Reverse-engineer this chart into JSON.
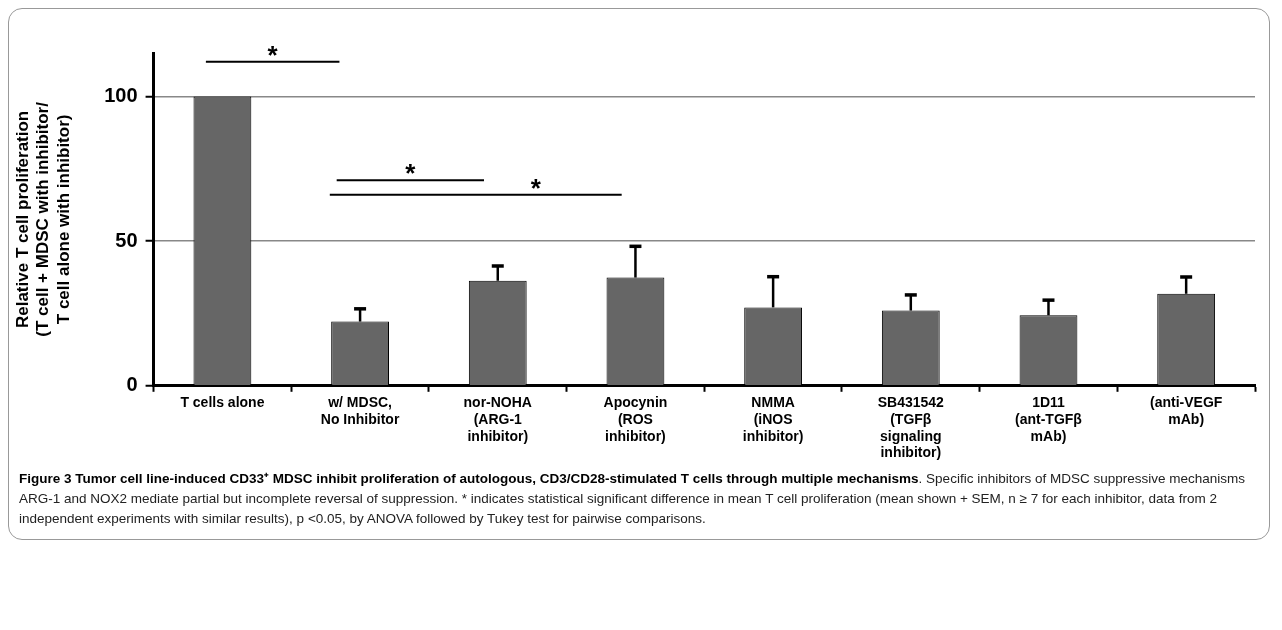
{
  "chart_data": {
    "type": "bar",
    "title": "Figure 3 Tumor cell line-induced CD33⁺ MDSC inhibit proliferation of autologous, CD3/CD28-stimulated T cells through multiple mechanisms",
    "ylabel": "Relative T cell proliferation\n(T cell + MDSC with inhibitor/\nT cell alone with inhibitor)",
    "categories": [
      "T cells alone",
      "w/ MDSC,\nNo Inhibitor",
      "nor-NOHA\n(ARG-1\ninhibitor)",
      "Apocynin\n(ROS\ninhibitor)",
      "NMMA\n(iNOS\ninhibitor)",
      "SB431542\n(TGFβ\nsignaling\ninhibitor)",
      "1D11\n(ant-TGFβ\nmAb)",
      "(anti-VEGF\nmAb)"
    ],
    "values": [
      100,
      22.2,
      36.3,
      37.4,
      27.1,
      26.0,
      24.4,
      31.8
    ],
    "errors": [
      null,
      [
        22.2,
        26.6
      ],
      [
        36.3,
        41.4
      ],
      [
        37.4,
        48.2
      ],
      [
        27.1,
        37.7
      ],
      [
        26.0,
        31.4
      ],
      [
        24.4,
        29.6
      ],
      [
        31.8,
        37.6
      ]
    ],
    "color": "#666666",
    "ylim": [
      0,
      115
    ],
    "yticks": [
      0,
      50,
      100
    ],
    "grid": "y",
    "annotations": [
      "*",
      "*",
      "*",
      ". Specific inhibitors of MDSC suppressive mechanisms ARG-1 and NOX2 mediate partial but incomplete reversal of suppression. * indicates statistical significant difference in mean T cell proliferation (mean shown + SEM, n ≥ 7 for each inhibitor, data from 2 independent experiments with similar results), p <0.05, by ANOVA followed by Tukey test for pairwise comparisons."
    ]
  }
}
